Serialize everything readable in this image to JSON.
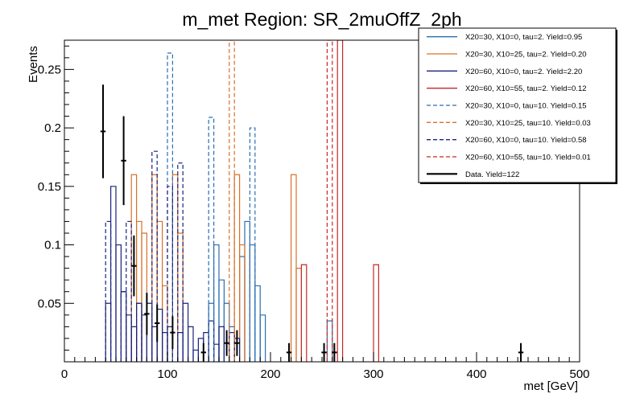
{
  "chart_data": {
    "type": "histogram",
    "title": "m_met Region: SR_2muOffZ_2ph",
    "xlabel": "met [GeV]",
    "ylabel": "Events",
    "xlim": [
      0,
      500
    ],
    "ylim": [
      0,
      0.275
    ],
    "bin_width": 5,
    "x_ticks": [
      0,
      100,
      200,
      300,
      400,
      500
    ],
    "x_tick_labels": [
      "0",
      "100",
      "200",
      "300",
      "400",
      "500"
    ],
    "y_ticks": [
      0.05,
      0.1,
      0.15,
      0.2,
      0.25
    ],
    "y_tick_labels": [
      "0.05",
      "0.1",
      "0.15",
      "0.2",
      "0.25"
    ],
    "legend": {
      "position": "top-right"
    },
    "series": [
      {
        "name": "X20=30, X10=0, tau=2. Yield=0.95",
        "color": "#2a6fb0",
        "dashed": false,
        "bins": [
          {
            "x": 140,
            "y": 0.05
          },
          {
            "x": 145,
            "y": 0.1
          },
          {
            "x": 150,
            "y": 0.07
          },
          {
            "x": 155,
            "y": 0.05
          },
          {
            "x": 160,
            "y": 0.03
          },
          {
            "x": 170,
            "y": 0.09
          },
          {
            "x": 175,
            "y": 0.12
          },
          {
            "x": 180,
            "y": 0.1
          },
          {
            "x": 185,
            "y": 0.065
          },
          {
            "x": 190,
            "y": 0.04
          },
          {
            "x": 255,
            "y": 0.035
          }
        ]
      },
      {
        "name": "X20=30, X10=25, tau=2. Yield=0.20",
        "color": "#d9702a",
        "dashed": false,
        "bins": [
          {
            "x": 65,
            "y": 0.16
          },
          {
            "x": 70,
            "y": 0.12
          },
          {
            "x": 75,
            "y": 0.11
          },
          {
            "x": 85,
            "y": 0.16
          },
          {
            "x": 90,
            "y": 0.12
          },
          {
            "x": 95,
            "y": 0.065
          },
          {
            "x": 105,
            "y": 0.16
          },
          {
            "x": 110,
            "y": 0.11
          },
          {
            "x": 165,
            "y": 0.16
          },
          {
            "x": 170,
            "y": 0.1
          },
          {
            "x": 220,
            "y": 0.16
          },
          {
            "x": 225,
            "y": 0.08
          }
        ]
      },
      {
        "name": "X20=60, X10=0, tau=2. Yield=2.20",
        "color": "#1a237e",
        "dashed": false,
        "bins": [
          {
            "x": 40,
            "y": 0.05
          },
          {
            "x": 45,
            "y": 0.15
          },
          {
            "x": 50,
            "y": 0.1
          },
          {
            "x": 55,
            "y": 0.06
          },
          {
            "x": 60,
            "y": 0.04
          },
          {
            "x": 65,
            "y": 0.03
          },
          {
            "x": 70,
            "y": 0.05
          },
          {
            "x": 75,
            "y": 0.04
          },
          {
            "x": 80,
            "y": 0.05
          },
          {
            "x": 85,
            "y": 0.03
          },
          {
            "x": 90,
            "y": 0.045
          },
          {
            "x": 95,
            "y": 0.025
          },
          {
            "x": 100,
            "y": 0.03
          },
          {
            "x": 110,
            "y": 0.025
          },
          {
            "x": 115,
            "y": 0.05
          },
          {
            "x": 120,
            "y": 0.03
          },
          {
            "x": 125,
            "y": 0.01
          },
          {
            "x": 130,
            "y": 0.02
          },
          {
            "x": 135,
            "y": 0.025
          },
          {
            "x": 140,
            "y": 0.035
          },
          {
            "x": 145,
            "y": 0.015
          },
          {
            "x": 150,
            "y": 0.03
          },
          {
            "x": 160,
            "y": 0.025
          },
          {
            "x": 165,
            "y": 0.02
          }
        ]
      },
      {
        "name": "X20=60, X10=55, tau=2. Yield=0.12",
        "color": "#c62828",
        "dashed": false,
        "bins": [
          {
            "x": 230,
            "y": 0.083
          },
          {
            "x": 265,
            "y": 0.275
          },
          {
            "x": 300,
            "y": 0.083
          }
        ]
      },
      {
        "name": "X20=30, X10=0, tau=10. Yield=0.15",
        "color": "#2a6fb0",
        "dashed": true,
        "bins": [
          {
            "x": 100,
            "y": 0.264
          },
          {
            "x": 140,
            "y": 0.209
          },
          {
            "x": 180,
            "y": 0.2
          }
        ]
      },
      {
        "name": "X20=30, X10=25, tau=10. Yield=0.03",
        "color": "#d9702a",
        "dashed": true,
        "bins": [
          {
            "x": 160,
            "y": 0.275
          }
        ]
      },
      {
        "name": "X20=60, X10=0, tau=10. Yield=0.58",
        "color": "#1a237e",
        "dashed": true,
        "bins": [
          {
            "x": 40,
            "y": 0.12
          },
          {
            "x": 55,
            "y": 0.06
          },
          {
            "x": 60,
            "y": 0.12
          },
          {
            "x": 70,
            "y": 0.05
          },
          {
            "x": 85,
            "y": 0.18
          },
          {
            "x": 100,
            "y": 0.15
          },
          {
            "x": 110,
            "y": 0.17
          }
        ]
      },
      {
        "name": "X20=60, X10=55, tau=10. Yield=0.01",
        "color": "#c62828",
        "dashed": true,
        "bins": [
          {
            "x": 255,
            "y": 0.275
          }
        ]
      },
      {
        "name": "Data. Yield=122",
        "color": "#000000",
        "dashed": false,
        "type": "errorbar",
        "points": [
          {
            "x": 37.5,
            "y": 0.197,
            "err": 0.04
          },
          {
            "x": 57.5,
            "y": 0.172,
            "err": 0.038
          },
          {
            "x": 67.5,
            "y": 0.082,
            "err": 0.026
          },
          {
            "x": 80,
            "y": 0.041,
            "err": 0.018
          },
          {
            "x": 90,
            "y": 0.033,
            "err": 0.016
          },
          {
            "x": 105,
            "y": 0.025,
            "err": 0.014
          },
          {
            "x": 135,
            "y": 0.008,
            "err": 0.008
          },
          {
            "x": 157.5,
            "y": 0.016,
            "err": 0.011
          },
          {
            "x": 167.5,
            "y": 0.016,
            "err": 0.011
          },
          {
            "x": 218,
            "y": 0.008,
            "err": 0.008
          },
          {
            "x": 252,
            "y": 0.008,
            "err": 0.008
          },
          {
            "x": 262,
            "y": 0.008,
            "err": 0.008
          },
          {
            "x": 443,
            "y": 0.008,
            "err": 0.008
          }
        ]
      }
    ]
  }
}
